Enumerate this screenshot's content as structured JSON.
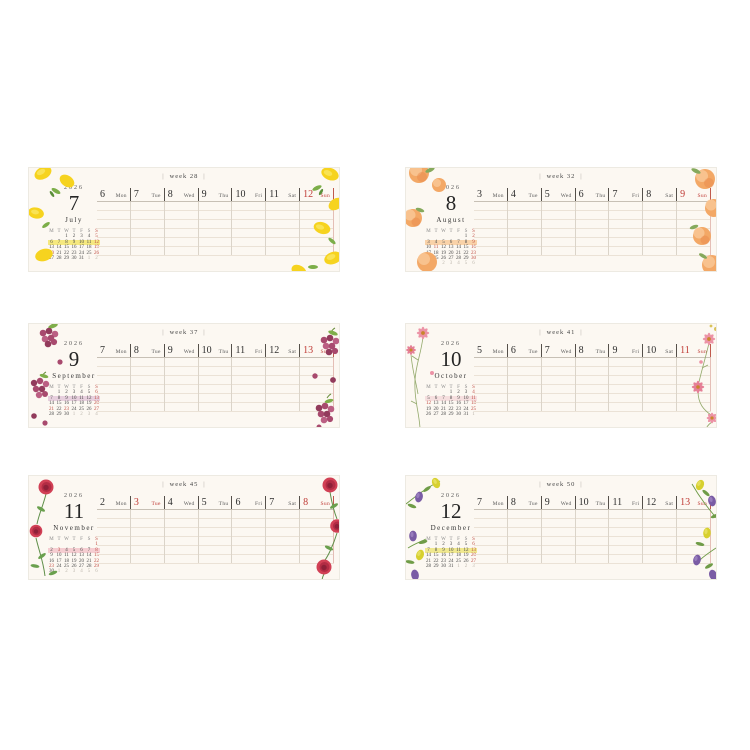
{
  "ui": {
    "week_bar": "|"
  },
  "colors": {
    "red": "#bf3a35",
    "card_background": "#fcf8f2"
  },
  "cards": [
    {
      "theme": "lemon",
      "decoration": "lemon-decoration",
      "week_label": "week 28",
      "year": "2026",
      "month_number": "7",
      "month_name": "July",
      "mini_highlight": "#f5e87f",
      "mini_highlight_row": 1,
      "mini_header": [
        "M",
        "T",
        "W",
        "T",
        "F",
        "S",
        "S"
      ],
      "mini_rows": [
        [
          "",
          "",
          "1",
          "2",
          "3",
          "4",
          "5"
        ],
        [
          "6",
          "7",
          "8",
          "9",
          "10",
          "11",
          "12"
        ],
        [
          "13",
          "14",
          "15",
          "16",
          "17",
          "18",
          "19"
        ],
        [
          "!20",
          "21",
          "22",
          "23",
          "24",
          "25",
          "26"
        ],
        [
          "27",
          "28",
          "29",
          "30",
          "31",
          ".1",
          ".2"
        ]
      ],
      "days": [
        {
          "date": "6",
          "dow": "Mon",
          "red": false
        },
        {
          "date": "7",
          "dow": "Tue",
          "red": false
        },
        {
          "date": "8",
          "dow": "Wed",
          "red": false
        },
        {
          "date": "9",
          "dow": "Thu",
          "red": false
        },
        {
          "date": "10",
          "dow": "Fri",
          "red": false
        },
        {
          "date": "11",
          "dow": "Sat",
          "red": false
        },
        {
          "date": "12",
          "dow": "Sun",
          "red": true
        }
      ]
    },
    {
      "theme": "peach",
      "decoration": "peach-decoration",
      "week_label": "week 32",
      "year": "2026",
      "month_number": "8",
      "month_name": "August",
      "mini_highlight": "#f9d2a8",
      "mini_highlight_row": 1,
      "mini_header": [
        "M",
        "T",
        "W",
        "T",
        "F",
        "S",
        "S"
      ],
      "mini_rows": [
        [
          "",
          "",
          "",
          "",
          "",
          "1",
          "2"
        ],
        [
          "3",
          "4",
          "5",
          "6",
          "7",
          "8",
          "9"
        ],
        [
          "10",
          "!11",
          "12",
          "13",
          "14",
          "15",
          "16"
        ],
        [
          "17",
          "18",
          "19",
          "20",
          "21",
          "22",
          "23"
        ],
        [
          "24",
          "25",
          "26",
          "27",
          "28",
          "29",
          "30"
        ],
        [
          "31",
          ".1",
          ".2",
          ".3",
          ".4",
          ".5",
          ".6"
        ]
      ],
      "days": [
        {
          "date": "3",
          "dow": "Mon",
          "red": false
        },
        {
          "date": "4",
          "dow": "Tue",
          "red": false
        },
        {
          "date": "5",
          "dow": "Wed",
          "red": false
        },
        {
          "date": "6",
          "dow": "Thu",
          "red": false
        },
        {
          "date": "7",
          "dow": "Fri",
          "red": false
        },
        {
          "date": "8",
          "dow": "Sat",
          "red": false
        },
        {
          "date": "9",
          "dow": "Sun",
          "red": true
        }
      ]
    },
    {
      "theme": "grape",
      "decoration": "grape-decoration",
      "week_label": "week 37",
      "year": "2026",
      "month_number": "9",
      "month_name": "September",
      "mini_highlight": "#e7cfdd",
      "mini_highlight_row": 1,
      "mini_header": [
        "M",
        "T",
        "W",
        "T",
        "F",
        "S",
        "S"
      ],
      "mini_rows": [
        [
          "",
          "1",
          "2",
          "3",
          "4",
          "5",
          "6"
        ],
        [
          "7",
          "8",
          "9",
          "10",
          "11",
          "12",
          "13"
        ],
        [
          "14",
          "15",
          "16",
          "17",
          "18",
          "19",
          "20"
        ],
        [
          "!21",
          "22",
          "!23",
          "24",
          "25",
          "26",
          "27"
        ],
        [
          "28",
          "29",
          "30",
          ".1",
          ".2",
          ".3",
          ".4"
        ]
      ],
      "days": [
        {
          "date": "7",
          "dow": "Mon",
          "red": false
        },
        {
          "date": "8",
          "dow": "Tue",
          "red": false
        },
        {
          "date": "9",
          "dow": "Wed",
          "red": false
        },
        {
          "date": "10",
          "dow": "Thu",
          "red": false
        },
        {
          "date": "11",
          "dow": "Fri",
          "red": false
        },
        {
          "date": "12",
          "dow": "Sat",
          "red": false
        },
        {
          "date": "13",
          "dow": "Sun",
          "red": true
        }
      ]
    },
    {
      "theme": "cosmos",
      "decoration": "cosmos-flower-decoration",
      "week_label": "week 41",
      "year": "2026",
      "month_number": "10",
      "month_name": "October",
      "mini_highlight": "#f6dfdf",
      "mini_highlight_row": 1,
      "mini_header": [
        "M",
        "T",
        "W",
        "T",
        "F",
        "S",
        "S"
      ],
      "mini_rows": [
        [
          "",
          "",
          "",
          "1",
          "2",
          "3",
          "4"
        ],
        [
          "5",
          "6",
          "7",
          "8",
          "9",
          "10",
          "11"
        ],
        [
          "!12",
          "13",
          "14",
          "15",
          "16",
          "17",
          "18"
        ],
        [
          "19",
          "20",
          "21",
          "22",
          "23",
          "24",
          "25"
        ],
        [
          "26",
          "27",
          "28",
          "29",
          "30",
          "31",
          ".1"
        ]
      ],
      "days": [
        {
          "date": "5",
          "dow": "Mon",
          "red": false
        },
        {
          "date": "6",
          "dow": "Tue",
          "red": false
        },
        {
          "date": "7",
          "dow": "Wed",
          "red": false
        },
        {
          "date": "8",
          "dow": "Thu",
          "red": false
        },
        {
          "date": "9",
          "dow": "Fri",
          "red": false
        },
        {
          "date": "10",
          "dow": "Sat",
          "red": false
        },
        {
          "date": "11",
          "dow": "Sun",
          "red": true
        }
      ]
    },
    {
      "theme": "rose",
      "decoration": "rose-decoration",
      "week_label": "week 45",
      "year": "2026",
      "month_number": "11",
      "month_name": "November",
      "mini_highlight": "#f5cdd1",
      "mini_highlight_row": 1,
      "mini_header": [
        "M",
        "T",
        "W",
        "T",
        "F",
        "S",
        "S"
      ],
      "mini_rows": [
        [
          "",
          "",
          "",
          "",
          "",
          "",
          "1"
        ],
        [
          "2",
          "!3",
          "4",
          "5",
          "6",
          "7",
          "8"
        ],
        [
          "9",
          "10",
          "11",
          "12",
          "13",
          "14",
          "15"
        ],
        [
          "16",
          "17",
          "18",
          "19",
          "20",
          "21",
          "22"
        ],
        [
          "!23",
          "24",
          "25",
          "26",
          "27",
          "28",
          "29"
        ],
        [
          "30",
          ".1",
          ".2",
          ".3",
          ".4",
          ".5",
          ".6"
        ]
      ],
      "days": [
        {
          "date": "2",
          "dow": "Mon",
          "red": false
        },
        {
          "date": "3",
          "dow": "Tue",
          "red": true
        },
        {
          "date": "4",
          "dow": "Wed",
          "red": false
        },
        {
          "date": "5",
          "dow": "Thu",
          "red": false
        },
        {
          "date": "6",
          "dow": "Fri",
          "red": false
        },
        {
          "date": "7",
          "dow": "Sat",
          "red": false
        },
        {
          "date": "8",
          "dow": "Sun",
          "red": true
        }
      ]
    },
    {
      "theme": "olive",
      "decoration": "olive-decoration",
      "week_label": "week 50",
      "year": "2026",
      "month_number": "12",
      "month_name": "December",
      "mini_highlight": "#f0e88f",
      "mini_highlight_row": 1,
      "mini_header": [
        "M",
        "T",
        "W",
        "T",
        "F",
        "S",
        "S"
      ],
      "mini_rows": [
        [
          "",
          "1",
          "2",
          "3",
          "4",
          "5",
          "6"
        ],
        [
          "7",
          "8",
          "9",
          "10",
          "11",
          "12",
          "13"
        ],
        [
          "14",
          "15",
          "16",
          "17",
          "18",
          "19",
          "20"
        ],
        [
          "21",
          "22",
          "23",
          "24",
          "25",
          "26",
          "27"
        ],
        [
          "28",
          "29",
          "30",
          "31",
          ".1",
          ".2",
          ".3"
        ]
      ],
      "days": [
        {
          "date": "7",
          "dow": "Mon",
          "red": false
        },
        {
          "date": "8",
          "dow": "Tue",
          "red": false
        },
        {
          "date": "9",
          "dow": "Wed",
          "red": false
        },
        {
          "date": "10",
          "dow": "Thu",
          "red": false
        },
        {
          "date": "11",
          "dow": "Fri",
          "red": false
        },
        {
          "date": "12",
          "dow": "Sat",
          "red": false
        },
        {
          "date": "13",
          "dow": "Sun",
          "red": true
        }
      ]
    }
  ]
}
